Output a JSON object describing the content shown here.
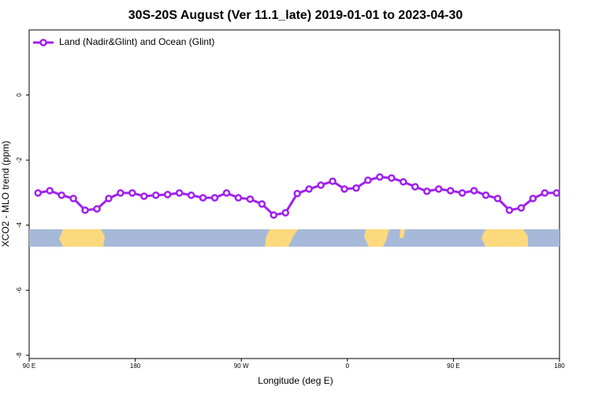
{
  "chart_data": {
    "type": "line",
    "title": "30S-20S August (Ver 11.1_late)   2019-01-01 to 2023-04-30",
    "x_label": "Longitude (deg E)",
    "y_label": "XCO2 - MLO trend (ppm)",
    "x": [
      97.5,
      107.5,
      117.5,
      127.5,
      137.5,
      147.5,
      157.5,
      167.5,
      177.5,
      187.5,
      197.5,
      207.5,
      217.5,
      227.5,
      237.5,
      247.5,
      257.5,
      267.5,
      277.5,
      287.5,
      297.5,
      307.5,
      317.5,
      327.5,
      337.5,
      347.5,
      357.5,
      367.5,
      377.5,
      387.5,
      397.5,
      407.5,
      417.5,
      427.5,
      437.5,
      447.5,
      457.5,
      467.5,
      477.5,
      487.5,
      497.5,
      507.5,
      517.5,
      527.5,
      537.5
    ],
    "series": [
      {
        "name": "Land (Nadir&Glint) and Ocean (Glint)",
        "color": "#a020f0",
        "values": [
          -3.01,
          -2.94,
          -3.08,
          -3.18,
          -3.54,
          -3.5,
          -3.18,
          -3.01,
          -3.01,
          -3.11,
          -3.08,
          -3.06,
          -3.01,
          -3.08,
          -3.16,
          -3.16,
          -3.01,
          -3.16,
          -3.2,
          -3.35,
          -3.69,
          -3.62,
          -3.03,
          -2.89,
          -2.77,
          -2.65,
          -2.89,
          -2.86,
          -2.62,
          -2.52,
          -2.55,
          -2.67,
          -2.82,
          -2.96,
          -2.89,
          -2.94,
          -3.01,
          -2.94,
          -3.08,
          -3.18,
          -3.54,
          -3.47,
          -3.18,
          -3.01,
          -3.01
        ]
      }
    ],
    "xlim": [
      90,
      540
    ],
    "xticks": [
      {
        "value": 90,
        "label": "90 E"
      },
      {
        "value": 180,
        "label": "180"
      },
      {
        "value": 270,
        "label": "90 W"
      },
      {
        "value": 360,
        "label": "0"
      },
      {
        "value": 450,
        "label": "90 E"
      },
      {
        "value": 540,
        "label": "180"
      }
    ],
    "ylim": [
      -8.1,
      2
    ],
    "yticks": [
      0,
      -2,
      -4,
      -6,
      -8
    ],
    "legend": "top-left"
  }
}
